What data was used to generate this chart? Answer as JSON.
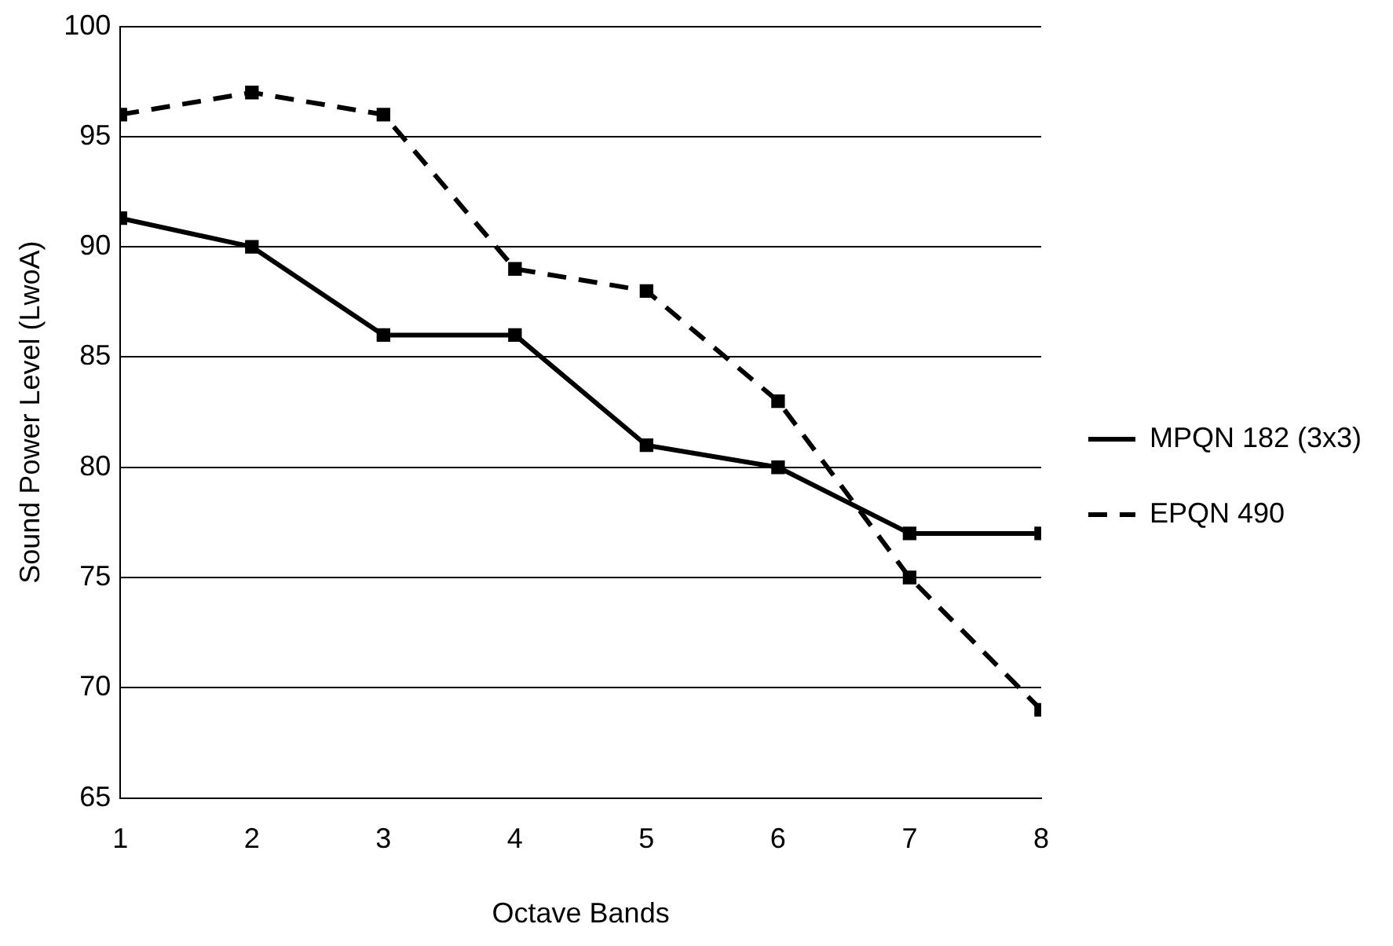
{
  "chart_data": {
    "type": "line",
    "xlabel": "Octave Bands",
    "ylabel": "Sound Power Level (LwoA)",
    "x": [
      1,
      2,
      3,
      4,
      5,
      6,
      7,
      8
    ],
    "series": [
      {
        "name": "MPQN 182 (3x3)",
        "color": "#000000",
        "line_style": "solid",
        "values": [
          91.3,
          90,
          86,
          86,
          81,
          80,
          77,
          77
        ]
      },
      {
        "name": "EPQN 490",
        "color": "#000000",
        "line_style": "dashed",
        "values": [
          96,
          97,
          96,
          89,
          88,
          83,
          75,
          69
        ]
      }
    ],
    "xlim": [
      1,
      8
    ],
    "xticks": [
      1,
      2,
      3,
      4,
      5,
      6,
      7,
      8
    ],
    "ylim": [
      65,
      100
    ],
    "yticks": [
      65,
      70,
      75,
      80,
      85,
      90,
      95,
      100
    ],
    "grid": "y",
    "legend": "right",
    "marker": "square"
  }
}
